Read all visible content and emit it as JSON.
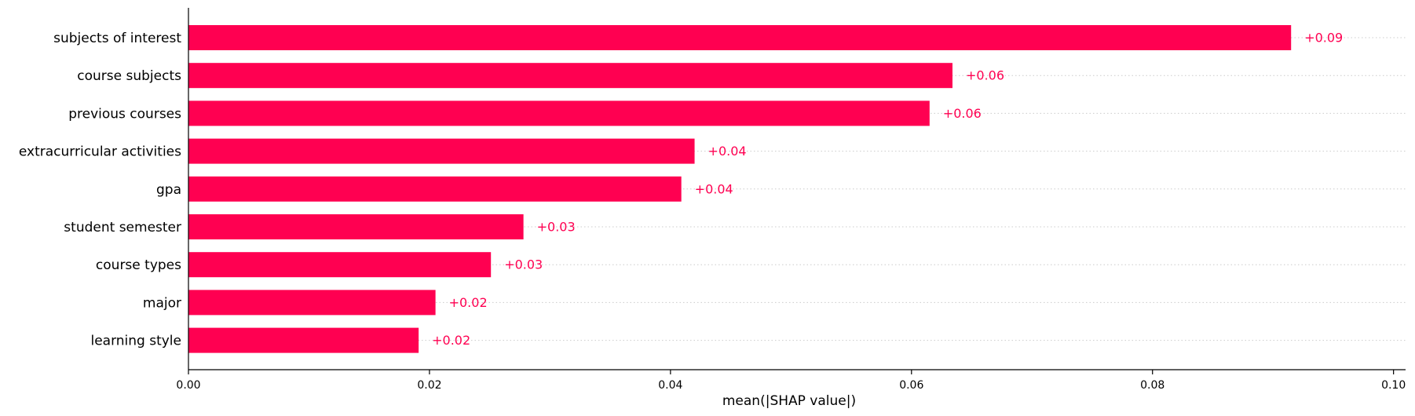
{
  "chart_data": {
    "type": "bar",
    "orientation": "horizontal",
    "categories": [
      "subjects of interest",
      "course subjects",
      "previous courses",
      "extracurricular activities",
      "gpa",
      "student semester",
      "course types",
      "major",
      "learning style"
    ],
    "values": [
      0.0915,
      0.0634,
      0.0615,
      0.042,
      0.0409,
      0.0278,
      0.0251,
      0.0205,
      0.0191
    ],
    "value_labels": [
      "+0.09",
      "+0.06",
      "+0.06",
      "+0.04",
      "+0.04",
      "+0.03",
      "+0.03",
      "+0.02",
      "+0.02"
    ],
    "xlabel": "mean(|SHAP value|)",
    "ylabel": "",
    "xlim": [
      0,
      0.101
    ],
    "x_ticks": [
      0.0,
      0.02,
      0.04,
      0.06,
      0.08,
      0.1
    ],
    "x_tick_labels": [
      "0.00",
      "0.02",
      "0.04",
      "0.06",
      "0.08",
      "0.10"
    ],
    "grid": "dotted horizontal guides per bar",
    "bar_color": "#ff0051",
    "label_color": "#ff0051"
  }
}
